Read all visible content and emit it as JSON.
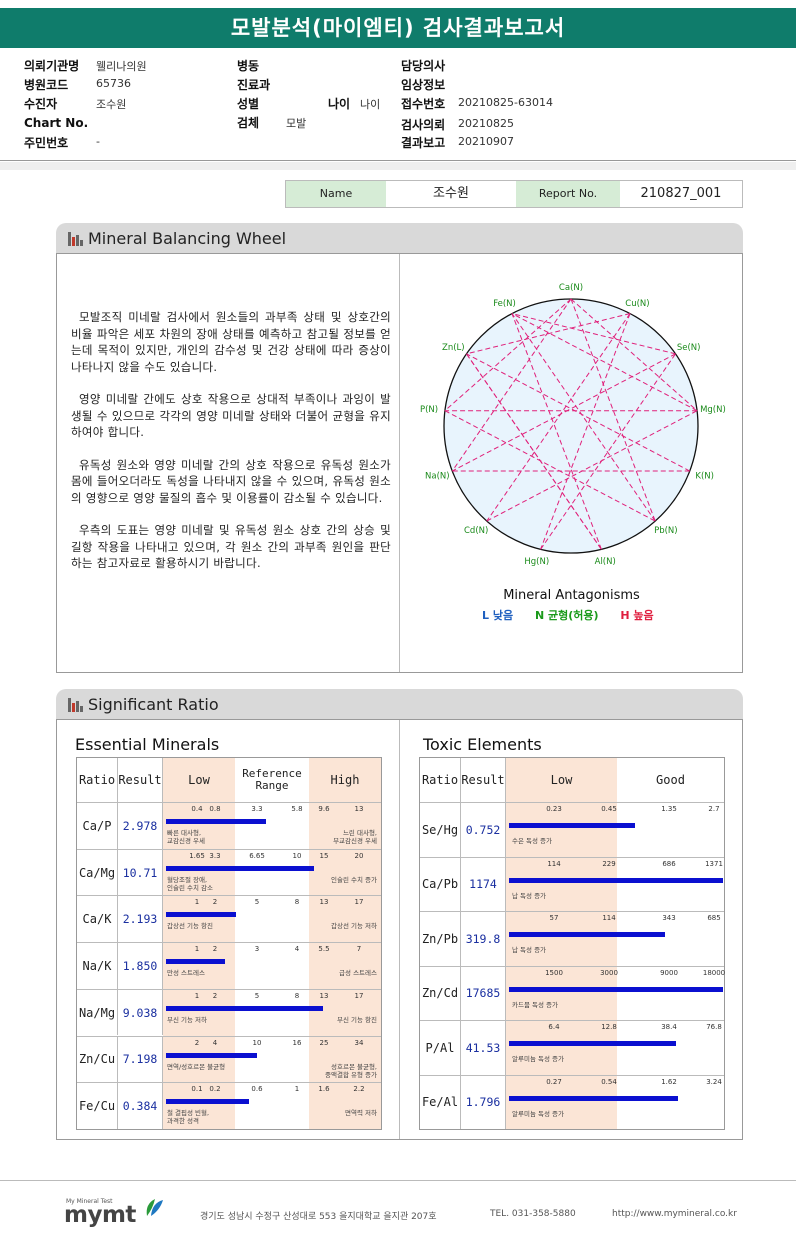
{
  "report": {
    "title": "모발분석(마이엠티) 검사결과보고서"
  },
  "info": {
    "institution_label": "의뢰기관명",
    "institution": "웰리나의원",
    "hospital_code_label": "병원코드",
    "hospital_code": "65736",
    "patient_label": "수진자",
    "patient": "조수원",
    "chart_label": "Chart No.",
    "chart": "",
    "resident_label": "주민번호",
    "resident": "-",
    "ward_label": "병동",
    "ward": "",
    "dept_label": "진료과",
    "dept": "",
    "sex_label": "성별",
    "sex": "",
    "age_label": "나이",
    "age": "나이",
    "specimen_label": "검체",
    "specimen": "모발",
    "doctor_label": "담당의사",
    "doctor": "",
    "clinical_label": "임상정보",
    "clinical": "",
    "receipt_label": "접수번호",
    "receipt": "20210825-63014",
    "request_label": "검사의뢰",
    "request": "20210825",
    "result_label": "결과보고",
    "result": "20210907"
  },
  "namebox": {
    "name_label": "Name",
    "name": "조수원",
    "report_label": "Report No.",
    "report": "210827_001"
  },
  "wheel_section": {
    "title": "Mineral Balancing Wheel",
    "paragraphs": [
      "모발조직 미네랄 검사에서 원소들의 과부족 상태 및 상호간의 비율 파악은 세포 차원의 장애 상태를 예측하고 참고될 정보를 얻는데 목적이 있지만, 개인의 감수성 및 건강 상태에 따라 증상이 나타나지 않을 수도 있습니다.",
      "영양 미네랄 간에도 상호 작용으로 상대적 부족이나 과잉이 발생될 수 있으므로 각각의 영양 미네랄 상태와 더불어 균형을 유지하여야 합니다.",
      "유독성 원소와 영양 미네랄 간의 상호 작용으로 유독성 원소가 몸에 들어오더라도 독성을 나타내지 않을 수 있으며, 유독성 원소의 영향으로 영양 물질의 흡수 및 이용률이 감소될 수 있습니다.",
      "우측의 도표는 영양 미네랄 및 유독성 원소 상호 간의 상승 및 길항 작용을 나타내고 있으며, 각 원소 간의 과부족 원인을 판단하는 참고자료로 활용하시기 바랍니다."
    ],
    "wheel_title": "Mineral Antagonisms",
    "legend": [
      {
        "text": "L 낮음",
        "color": "#1f5fbf"
      },
      {
        "text": "N 균형(허용)",
        "color": "#1a9a1a"
      },
      {
        "text": "H 높음",
        "color": "#e01f3f"
      }
    ],
    "elements": [
      {
        "label": "Ca(N)",
        "color": "#1a8a1a"
      },
      {
        "label": "Cu(N)",
        "color": "#1a8a1a"
      },
      {
        "label": "Se(N)",
        "color": "#1a8a1a"
      },
      {
        "label": "Mg(N)",
        "color": "#1a8a1a"
      },
      {
        "label": "K(N)",
        "color": "#1a8a1a"
      },
      {
        "label": "Pb(N)",
        "color": "#1a8a1a"
      },
      {
        "label": "Al(N)",
        "color": "#1a8a1a"
      },
      {
        "label": "Hg(N)",
        "color": "#1a8a1a"
      },
      {
        "label": "Cd(N)",
        "color": "#1a8a1a"
      },
      {
        "label": "Na(N)",
        "color": "#1a8a1a"
      },
      {
        "label": "P(N)",
        "color": "#1a8a1a"
      },
      {
        "label": "Zn(L)",
        "color": "#1f3fbf"
      },
      {
        "label": "Fe(N)",
        "color": "#1a8a1a"
      }
    ]
  },
  "ratio_section": {
    "title": "Significant Ratio",
    "essential": {
      "title": "Essential Minerals",
      "headers": {
        "ratio": "Ratio",
        "result": "Result",
        "low": "Low",
        "ref": "Reference Range",
        "high": "High"
      },
      "rows": [
        {
          "ratio": "Ca/P",
          "result": "2.978",
          "ticks": [
            "0.4",
            "0.8",
            "3.3",
            "5.8",
            "9.6",
            "13"
          ],
          "bar_fraction": 0.47,
          "left_note": "빠른 대사형,\n교감신경 우세",
          "right_note": "느린 대사형,\n부교감신경 우세"
        },
        {
          "ratio": "Ca/Mg",
          "result": "10.71",
          "ticks": [
            "1.65",
            "3.3",
            "6.65",
            "10",
            "15",
            "20"
          ],
          "bar_fraction": 0.7,
          "left_note": "혈당조절 장애,\n인슐린 수치 감소",
          "right_note": "인슐린 수치 증가"
        },
        {
          "ratio": "Ca/K",
          "result": "2.193",
          "ticks": [
            "1",
            "2",
            "5",
            "8",
            "13",
            "17"
          ],
          "bar_fraction": 0.33,
          "left_note": "갑상선 기능 항진",
          "right_note": "갑상선 기능 저하"
        },
        {
          "ratio": "Na/K",
          "result": "1.850",
          "ticks": [
            "1",
            "2",
            "3",
            "4",
            "5.5",
            "7"
          ],
          "bar_fraction": 0.28,
          "left_note": "만성 스트레스",
          "right_note": "급성 스트레스"
        },
        {
          "ratio": "Na/Mg",
          "result": "9.038",
          "ticks": [
            "1",
            "2",
            "5",
            "8",
            "13",
            "17"
          ],
          "bar_fraction": 0.74,
          "left_note": "부신 기능 저하",
          "right_note": "부신 기능 항진"
        },
        {
          "ratio": "Zn/Cu",
          "result": "7.198",
          "ticks": [
            "2",
            "4",
            "10",
            "16",
            "25",
            "34"
          ],
          "bar_fraction": 0.43,
          "left_note": "면역/성호르몬 불균형",
          "right_note": "성호르몬 불균형,\n중액결합 유형 증가"
        },
        {
          "ratio": "Fe/Cu",
          "result": "0.384",
          "ticks": [
            "0.1",
            "0.2",
            "0.6",
            "1",
            "1.6",
            "2.2"
          ],
          "bar_fraction": 0.39,
          "left_note": "철 결핍성 빈혈,\n과격한 성격",
          "right_note": "면역력 저하"
        }
      ]
    },
    "toxic": {
      "title": "Toxic Elements",
      "headers": {
        "ratio": "Ratio",
        "result": "Result",
        "low": "Low",
        "good": "Good"
      },
      "rows": [
        {
          "ratio": "Se/Hg",
          "result": "0.752",
          "ticks": [
            "0.23",
            "0.45",
            "1.35",
            "2.7"
          ],
          "bar_fraction": 0.59,
          "note": "수은 독성 증가"
        },
        {
          "ratio": "Ca/Pb",
          "result": "1174",
          "ticks": [
            "114",
            "229",
            "686",
            "1371"
          ],
          "bar_fraction": 1.0,
          "note": "납 독성 증가"
        },
        {
          "ratio": "Zn/Pb",
          "result": "319.8",
          "ticks": [
            "57",
            "114",
            "343",
            "685"
          ],
          "bar_fraction": 0.73,
          "note": "납 독성 증가"
        },
        {
          "ratio": "Zn/Cd",
          "result": "17685",
          "ticks": [
            "1500",
            "3000",
            "9000",
            "18000"
          ],
          "bar_fraction": 1.0,
          "note": "카드뮴 독성 증가"
        },
        {
          "ratio": "P/Al",
          "result": "41.53",
          "ticks": [
            "6.4",
            "12.8",
            "38.4",
            "76.8"
          ],
          "bar_fraction": 0.78,
          "note": "알루미늄 독성 증가"
        },
        {
          "ratio": "Fe/Al",
          "result": "1.796",
          "ticks": [
            "0.27",
            "0.54",
            "1.62",
            "3.24"
          ],
          "bar_fraction": 0.79,
          "note": "알루미늄 독성 증가"
        }
      ]
    }
  },
  "footer": {
    "brand_small": "My Mineral Test",
    "brand": "mymt",
    "address": "경기도 성남시 수정구 산성대로 553 을지대학교 을지관 207호",
    "tel": "TEL. 031-358-5880",
    "url": "http://www.mymineral.co.kr"
  },
  "colors": {
    "header": "#0f7c6b",
    "bar": "#0b10d0",
    "peach": "#fbe5d6",
    "wheel_fill": "#e8f4fd",
    "antagonism_line": "#e0207a"
  }
}
